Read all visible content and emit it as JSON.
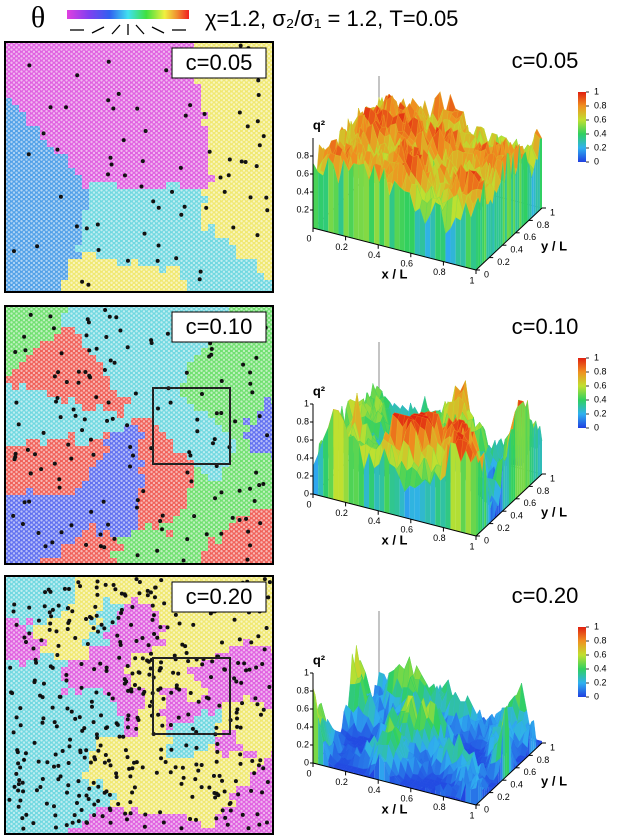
{
  "header": {
    "symbol": "θ",
    "parameters": "χ=1.2, σ₂/σ₁ = 1.2, T=0.05"
  },
  "panels": [
    {
      "snapshot_label": "c=0.05",
      "plot_label": "c=0.05",
      "z_label": "q²",
      "x_label": "x / L",
      "y_label": "y / L",
      "z_ticks": [
        0.8,
        0.6,
        0.4,
        0.2
      ],
      "x_ticks": [
        0,
        0.2,
        0.4,
        0.6,
        0.8,
        1
      ],
      "y_ticks": [
        0,
        0.2,
        0.4,
        0.6,
        0.8,
        1
      ],
      "colorbar_ticks": [
        1,
        0.8,
        0.6,
        0.4,
        0.2,
        0
      ]
    },
    {
      "snapshot_label": "c=0.10",
      "plot_label": "c=0.10",
      "z_label": "q²",
      "x_label": "x / L",
      "y_label": "y / L",
      "z_ticks": [
        1,
        0.8,
        0.6,
        0.4,
        0.2,
        0
      ],
      "x_ticks": [
        0,
        0.2,
        0.4,
        0.6,
        0.8,
        1
      ],
      "y_ticks": [
        0,
        0.2,
        0.4,
        0.6,
        0.8,
        1
      ],
      "colorbar_ticks": [
        1,
        0.8,
        0.6,
        0.4,
        0.2,
        0
      ]
    },
    {
      "snapshot_label": "c=0.20",
      "plot_label": "c=0.20",
      "z_label": "q²",
      "x_label": "x / L",
      "y_label": "y / L",
      "z_ticks": [
        1,
        0.8,
        0.6,
        0.4,
        0.2,
        0
      ],
      "x_ticks": [
        0,
        0.2,
        0.4,
        0.6,
        0.8,
        1
      ],
      "y_ticks": [
        0,
        0.2,
        0.4,
        0.6,
        0.8,
        1
      ],
      "colorbar_ticks": [
        1,
        0.8,
        0.6,
        0.4,
        0.2,
        0
      ]
    }
  ]
}
